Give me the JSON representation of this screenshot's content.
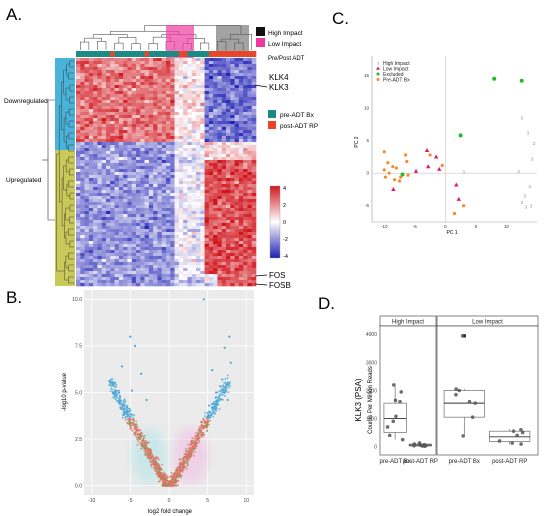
{
  "panels": {
    "A": "A.",
    "B": "B.",
    "C": "C.",
    "D": "D."
  },
  "colors": {
    "high_impact": "#111111",
    "low_impact": "#ee3aa0",
    "pre_adt": "#1b8c84",
    "post_adt": "#e8452a",
    "downregulated_band": "#4ab3d9",
    "upregulated_band": "#c9c95a",
    "heat_low": "#1f1fb4",
    "heat_mid": "#ffffff",
    "heat_high": "#d0161d",
    "volcano_up": "#4aa8d6",
    "volcano_mid": "#9c8e55",
    "volcano_low": "#f07070",
    "pca_high": "#bbbbbb",
    "pca_low": "#e0186c",
    "pca_excluded": "#22bb22",
    "pca_pre": "#f58a2a"
  },
  "heatmap": {
    "legend_top": {
      "items": [
        {
          "label": "High Impact",
          "color": "#111111"
        },
        {
          "label": "Low Impact",
          "color": "#ee3aa0"
        }
      ],
      "bar_label": "Pre/Post ADT"
    },
    "legend_side": {
      "items": [
        {
          "label": "pre-ADT Bx",
          "color": "#1b8c84"
        },
        {
          "label": "post-ADT RP",
          "color": "#e8452a"
        }
      ]
    },
    "row_groups": [
      "Downregulated",
      "Upregulated"
    ],
    "gene_labels": [
      "KLK4",
      "KLK3",
      "FOS",
      "FOSB"
    ],
    "colorbar_ticks": [
      "4",
      "2",
      "0",
      "-2",
      "-4"
    ]
  },
  "chart_data": [
    {
      "panel": "B",
      "type": "scatter",
      "xlabel": "log2 fold change",
      "ylabel": "-log10 p-value",
      "xlim": [
        -11,
        11
      ],
      "ylim": [
        -0.5,
        10.5
      ],
      "xticks": [
        "-10",
        "-5",
        "0",
        "5",
        "10"
      ],
      "yticks": [
        "0.0",
        "2.5",
        "5.0",
        "7.5",
        "10.0"
      ],
      "grid": true,
      "highlighted_points": [
        {
          "x": 4.5,
          "y": 10.0
        },
        {
          "x": -5.0,
          "y": 8.0
        },
        {
          "x": -4.4,
          "y": 7.5
        },
        {
          "x": 7.8,
          "y": 8.0
        },
        {
          "x": 7.2,
          "y": 7.4
        },
        {
          "x": 8.0,
          "y": 6.6
        },
        {
          "x": -6.1,
          "y": 6.4
        },
        {
          "x": -3.6,
          "y": 6.0
        },
        {
          "x": 5.6,
          "y": 6.2
        },
        {
          "x": 6.9,
          "y": 5.7
        },
        {
          "x": -4.8,
          "y": 5.1
        },
        {
          "x": 6.1,
          "y": 5.0
        },
        {
          "x": -2.9,
          "y": 4.6
        },
        {
          "x": 7.6,
          "y": 4.6
        },
        {
          "x": -5.4,
          "y": 4.2
        },
        {
          "x": 5.2,
          "y": 4.3
        }
      ]
    },
    {
      "panel": "C",
      "type": "scatter",
      "xlabel": "PC 1",
      "ylabel": "PC 2",
      "xlim": [
        -12,
        15
      ],
      "ylim": [
        -7.5,
        18
      ],
      "xticks": [
        -10,
        -5,
        0,
        5,
        10
      ],
      "yticks": [
        -5,
        0,
        5,
        10,
        15
      ],
      "legend_position": "top-left",
      "series": [
        {
          "name": "High Impact",
          "marker": "3",
          "color": "#bbbbbb",
          "points": [
            [
              12.5,
              8.5
            ],
            [
              13.5,
              6.2
            ],
            [
              14.5,
              4.6
            ],
            [
              14.2,
              2.2
            ],
            [
              12.0,
              0.3
            ],
            [
              13.8,
              -2.0
            ],
            [
              13.0,
              -3.5
            ],
            [
              12.5,
              -4.5
            ],
            [
              13.2,
              -5.2
            ],
            [
              14.0,
              -5.0
            ],
            [
              3.0,
              0.2
            ]
          ]
        },
        {
          "name": "Low Impact",
          "marker": "triangle",
          "color": "#e0186c",
          "points": [
            [
              -3.0,
              3.5
            ],
            [
              -1.5,
              2.5
            ],
            [
              -2.8,
              1.0
            ],
            [
              -4.8,
              0.3
            ],
            [
              -1.0,
              0.6
            ],
            [
              1.8,
              -1.8
            ],
            [
              2.2,
              -4.0
            ],
            [
              -8.5,
              -2.5
            ]
          ]
        },
        {
          "name": "Excluded",
          "marker": "circle",
          "color": "#22bb22",
          "points": [
            [
              8.0,
              14.5
            ],
            [
              12.5,
              14.2
            ],
            [
              2.5,
              5.8
            ],
            [
              -7.0,
              -0.2
            ]
          ]
        },
        {
          "name": "Pre-ADT Bx",
          "marker": "circle",
          "color": "#f58a2a",
          "points": [
            [
              -10.0,
              3.3
            ],
            [
              -9.4,
              1.6
            ],
            [
              -10.0,
              0.5
            ],
            [
              -9.2,
              0.0
            ],
            [
              -9.8,
              -0.6
            ],
            [
              -8.6,
              1.0
            ],
            [
              -8.0,
              0.8
            ],
            [
              -6.3,
              1.8
            ],
            [
              -7.3,
              -0.6
            ],
            [
              -6.1,
              -0.3
            ],
            [
              -7.5,
              -1.2
            ],
            [
              -8.3,
              -1.0
            ],
            [
              -6.5,
              2.8
            ],
            [
              -2.5,
              2.8
            ],
            [
              -0.5,
              1.2
            ],
            [
              1.5,
              -6.2
            ],
            [
              3.0,
              -5.0
            ]
          ]
        }
      ]
    },
    {
      "panel": "D",
      "type": "box",
      "ylabel_main": "KLK3 (PSA)",
      "ylabel_sub": "Counts Per Million Reads",
      "ylim": [
        -300,
        4300
      ],
      "yticks": [
        "0",
        "1000",
        "2000",
        "3000",
        "4000"
      ],
      "facets": [
        {
          "name": "High Impact",
          "groups": [
            {
              "label": "pre-ADT Bx",
              "box": {
                "min": 250,
                "q1": 500,
                "median": 1000,
                "q3": 1550,
                "max": 2250
              },
              "points": [
                2200,
                1950,
                1650,
                1600,
                1080,
                900,
                700,
                400,
                250
              ]
            },
            {
              "label": "post-ADT RP",
              "box": {
                "min": 0,
                "q1": 20,
                "median": 55,
                "q3": 90,
                "max": 140
              },
              "points": [
                130,
                90,
                70,
                50,
                40,
                30,
                20,
                10
              ]
            }
          ]
        },
        {
          "name": "Low Impact",
          "groups": [
            {
              "label": "pre-ADT Bx",
              "box": {
                "min": 350,
                "q1": 1050,
                "median": 1550,
                "q3": 2000,
                "max": 2050,
                "outlier": 3950
              },
              "points": [
                3950,
                2050,
                2000,
                1850,
                1600,
                1550,
                1050,
                380
              ]
            },
            {
              "label": "post-ADT RP",
              "box": {
                "min": 80,
                "q1": 180,
                "median": 350,
                "q3": 550,
                "max": 620
              },
              "points": [
                600,
                550,
                500,
                400,
                200,
                130,
                90
              ]
            }
          ]
        }
      ]
    }
  ]
}
